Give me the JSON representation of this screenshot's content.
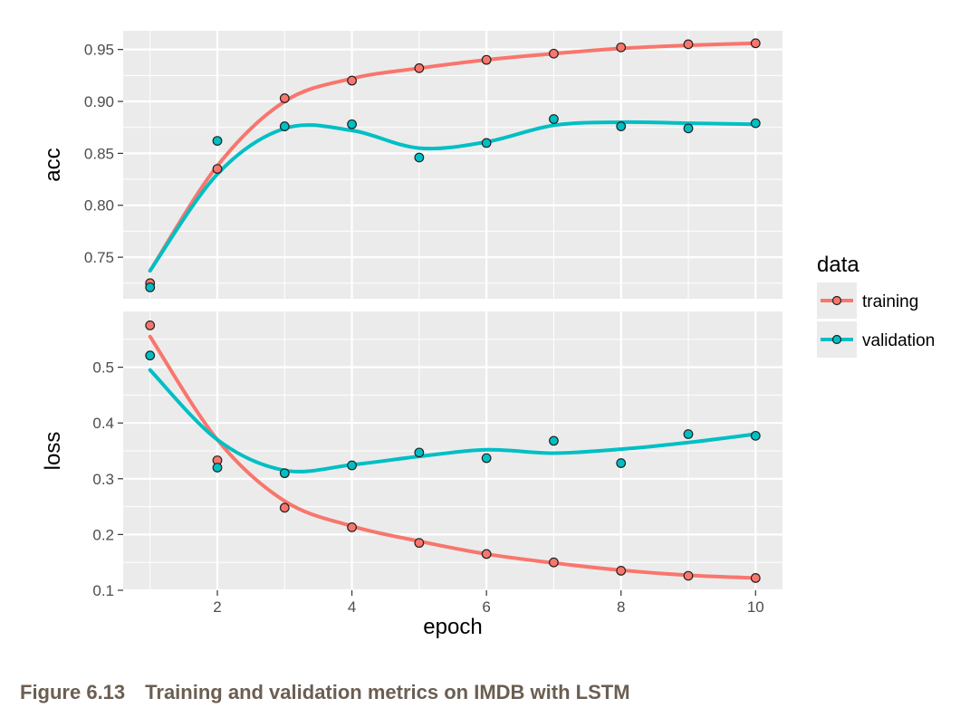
{
  "chart_data": {
    "type": "line",
    "xlabel": "epoch",
    "x": [
      1,
      2,
      3,
      4,
      5,
      6,
      7,
      8,
      9,
      10
    ],
    "xticks": [
      "2",
      "4",
      "6",
      "8",
      "10"
    ],
    "grid": true,
    "legend": {
      "title": "data",
      "placement": "right"
    },
    "colors": {
      "training": "#F8766D",
      "validation": "#00BFC4",
      "panel": "#EBEBEB",
      "grid": "#ffffff"
    },
    "panels": [
      {
        "ylabel": "acc",
        "yticks": [
          "0.75",
          "0.80",
          "0.85",
          "0.90",
          "0.95"
        ],
        "ylim": [
          0.71,
          0.968
        ],
        "series": [
          {
            "name": "training",
            "values": [
              0.725,
              0.835,
              0.903,
              0.92,
              0.932,
              0.94,
              0.946,
              0.952,
              0.955,
              0.956
            ],
            "smooth": [
              0.737,
              0.838,
              0.9,
              0.922,
              0.932,
              0.94,
              0.946,
              0.951,
              0.954,
              0.956
            ]
          },
          {
            "name": "validation",
            "values": [
              0.721,
              0.862,
              0.876,
              0.878,
              0.846,
              0.86,
              0.883,
              0.876,
              0.874,
              0.879
            ],
            "smooth": [
              0.737,
              0.83,
              0.874,
              0.872,
              0.855,
              0.861,
              0.877,
              0.88,
              0.879,
              0.878
            ]
          }
        ]
      },
      {
        "ylabel": "loss",
        "yticks": [
          "0.1",
          "0.2",
          "0.3",
          "0.4",
          "0.5"
        ],
        "ylim": [
          0.1,
          0.6
        ],
        "series": [
          {
            "name": "training",
            "values": [
              0.575,
              0.333,
              0.248,
              0.213,
              0.185,
              0.165,
              0.15,
              0.135,
              0.126,
              0.122
            ],
            "smooth": [
              0.555,
              0.37,
              0.26,
              0.215,
              0.188,
              0.165,
              0.149,
              0.136,
              0.127,
              0.122
            ]
          },
          {
            "name": "validation",
            "values": [
              0.521,
              0.32,
              0.31,
              0.324,
              0.347,
              0.337,
              0.368,
              0.328,
              0.38,
              0.377
            ],
            "smooth": [
              0.495,
              0.37,
              0.315,
              0.325,
              0.34,
              0.352,
              0.346,
              0.353,
              0.365,
              0.38
            ]
          }
        ]
      }
    ]
  },
  "caption": {
    "number": "Figure 6.13",
    "text": "Training and validation metrics on IMDB with LSTM"
  }
}
